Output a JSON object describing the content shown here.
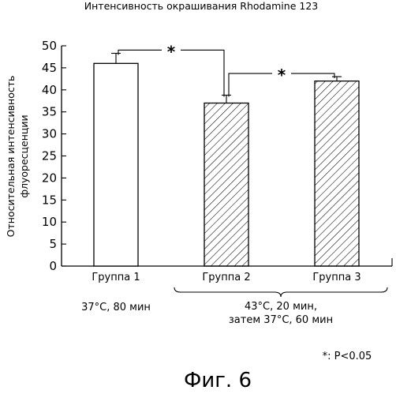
{
  "chart_data": {
    "type": "bar",
    "title": "Интенсивность окрашивания Rhodamine 123",
    "ylabel_lines": [
      "Относительная интенсивность",
      "флуоресценции"
    ],
    "categories": [
      "Группа 1",
      "Группа 2",
      "Группа 3"
    ],
    "values": [
      46,
      37,
      42
    ],
    "errors": [
      2.3,
      1.8,
      1.0
    ],
    "ylim": [
      0,
      50
    ],
    "yticks": [
      0,
      5,
      10,
      15,
      20,
      25,
      30,
      35,
      40,
      45,
      50
    ],
    "grid": false,
    "bar_fill": [
      "none",
      "hatch",
      "hatch"
    ],
    "significance": [
      {
        "from": 0,
        "to": 1,
        "label": "*"
      },
      {
        "from": 1,
        "to": 2,
        "label": "*"
      }
    ],
    "conditions": [
      {
        "text_lines": [
          "37°C, 80 мин"
        ],
        "groups": [
          0
        ]
      },
      {
        "text_lines": [
          "43°C, 20 мин,",
          "затем 37°C, 60 мин"
        ],
        "groups": [
          1,
          2
        ]
      }
    ],
    "footnote": "*: P<0.05"
  },
  "figure_caption": "Фиг. 6"
}
